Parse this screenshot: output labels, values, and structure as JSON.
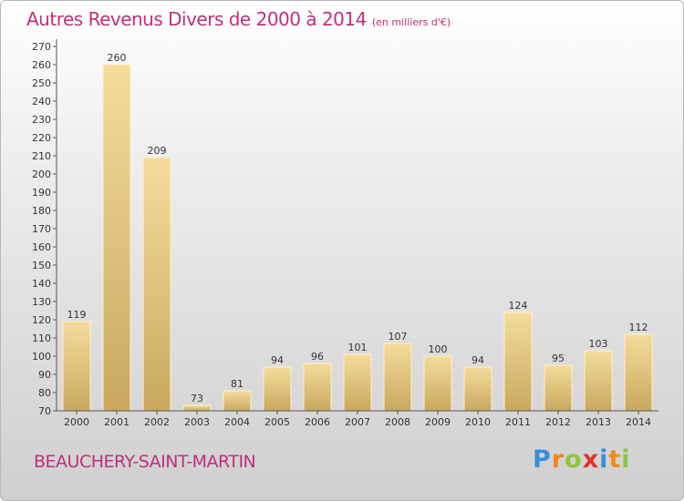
{
  "header": {
    "title": "Autres Revenus Divers de 2000 à 2014",
    "subtitle": "(en milliers d'€)"
  },
  "footer": {
    "commune": "BEAUCHERY-SAINT-MARTIN",
    "logo": [
      "P",
      "r",
      "o",
      "x",
      "i",
      "t",
      "i"
    ]
  },
  "colors": {
    "title": "#c0307a",
    "bar_light": "#f5dc9c",
    "bar_dark": "#c9a85e",
    "logo": [
      "#3a8fd6",
      "#f08a1c",
      "#8cc63f",
      "#e2332c",
      "#3a8fd6",
      "#f08a1c",
      "#8cc63f"
    ]
  },
  "chart_data": {
    "type": "bar",
    "categories": [
      "2000",
      "2001",
      "2002",
      "2003",
      "2004",
      "2005",
      "2006",
      "2007",
      "2008",
      "2009",
      "2010",
      "2011",
      "2012",
      "2013",
      "2014"
    ],
    "values": [
      119,
      260,
      209,
      73,
      81,
      94,
      96,
      101,
      107,
      100,
      94,
      124,
      95,
      103,
      112
    ],
    "ylim": [
      70,
      270
    ],
    "ytick_step": 10,
    "grid": false
  }
}
